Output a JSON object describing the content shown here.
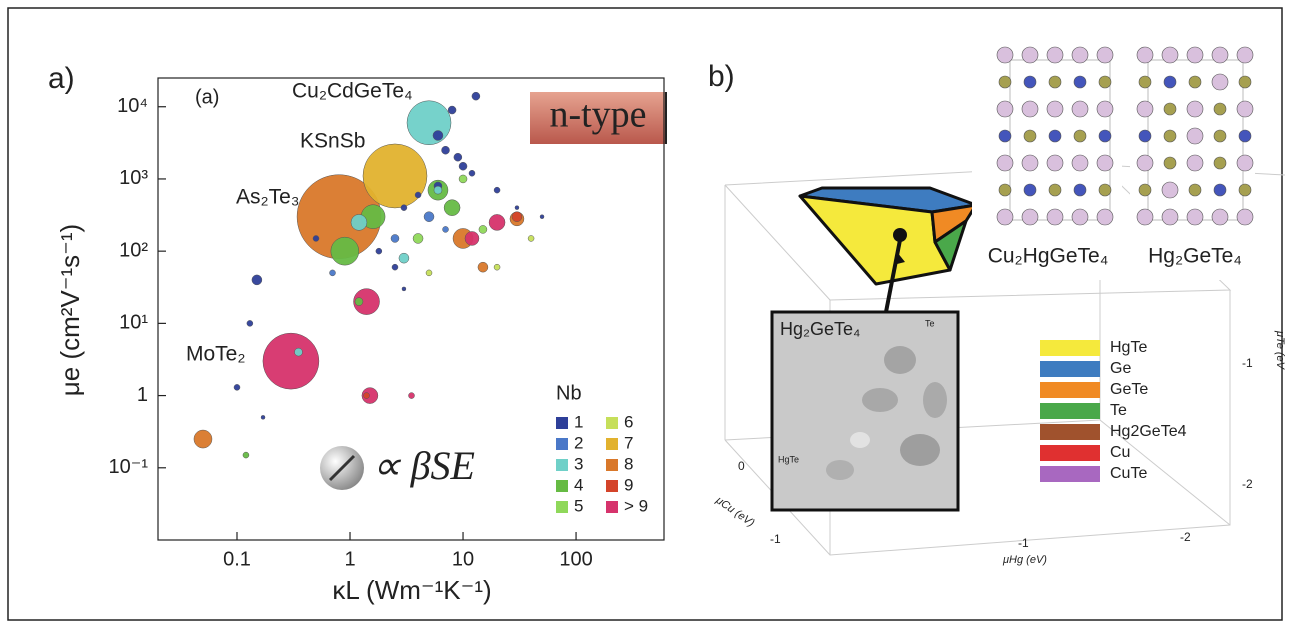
{
  "chart_data": {
    "type": "scatter",
    "panel_label": "a)",
    "x_label": "κL (Wm⁻¹K⁻¹)",
    "y_label": "μe (cm²V⁻¹s⁻¹)",
    "annotations": [
      "(a)",
      "Cu₂CdGeTe₄",
      "KSnSb",
      "As₂Te₃",
      "MoTe₂",
      "n-type",
      "∝ βSE"
    ],
    "xscale": "log",
    "yscale": "log",
    "xlim": [
      0.02,
      600
    ],
    "ylim": [
      0.01,
      25000
    ],
    "xticks": [
      0.1,
      1,
      10,
      100
    ],
    "yticks": [
      {
        "value": 0.1,
        "label": "10⁻¹"
      },
      1,
      {
        "value": 10,
        "label": "10¹"
      },
      {
        "value": 100,
        "label": "10²"
      },
      {
        "value": 1000,
        "label": "10³"
      },
      {
        "value": 10000,
        "label": "10⁴"
      }
    ],
    "legend_title": "Nb",
    "series": [
      {
        "name": "1",
        "color": "#2e3f99",
        "x": [
          13,
          8,
          6,
          7,
          9,
          10,
          12,
          6,
          4,
          3,
          0.15,
          0.13,
          0.1,
          0.5,
          20,
          30,
          50,
          3,
          1.8,
          2.5,
          0.17
        ],
        "values": [
          14000,
          9000,
          4000,
          2500,
          2000,
          1500,
          1200,
          800,
          600,
          400,
          40,
          10,
          1.3,
          150,
          700,
          400,
          300,
          30,
          100,
          60,
          0.5
        ],
        "sizes": [
          4,
          4,
          5,
          4,
          4,
          4,
          3,
          4,
          3,
          3,
          5,
          3,
          3,
          3,
          3,
          2,
          2,
          2,
          3,
          3,
          2
        ]
      },
      {
        "name": "2",
        "color": "#4a78c8",
        "x": [
          5,
          2.5,
          7,
          0.7
        ],
        "values": [
          300,
          150,
          200,
          50
        ],
        "sizes": [
          5,
          4,
          3,
          3
        ]
      },
      {
        "name": "3",
        "color": "#6fd0c8",
        "x": [
          5,
          3,
          6,
          0.35,
          1.2
        ],
        "values": [
          6000,
          80,
          700,
          4,
          250
        ],
        "sizes": [
          22,
          5,
          4,
          4,
          8
        ]
      },
      {
        "name": "4",
        "color": "#66bb44",
        "x": [
          0.9,
          1.6,
          6,
          8,
          1.2,
          0.12
        ],
        "values": [
          100,
          300,
          700,
          400,
          20,
          0.15
        ],
        "sizes": [
          14,
          12,
          10,
          8,
          4,
          3
        ]
      },
      {
        "name": "5",
        "color": "#8fd85a",
        "x": [
          4,
          10,
          15
        ],
        "values": [
          150,
          1000,
          200
        ],
        "sizes": [
          5,
          4,
          4
        ]
      },
      {
        "name": "6",
        "color": "#c6df5a",
        "x": [
          5,
          20,
          40
        ],
        "values": [
          50,
          60,
          150
        ],
        "sizes": [
          3,
          3,
          3
        ]
      },
      {
        "name": "7",
        "color": "#e2b22e",
        "x": [
          2.5
        ],
        "values": [
          1100
        ],
        "sizes": [
          32
        ]
      },
      {
        "name": "8",
        "color": "#d9782a",
        "x": [
          0.8,
          10,
          0.05,
          15,
          30
        ],
        "values": [
          300,
          150,
          0.25,
          60,
          280
        ],
        "sizes": [
          42,
          10,
          9,
          5,
          7
        ]
      },
      {
        "name": "9",
        "color": "#d4442a",
        "x": [
          30,
          1.4
        ],
        "values": [
          300,
          1
        ],
        "sizes": [
          5,
          3
        ]
      },
      {
        "name": "> 9",
        "color": "#d6336c",
        "x": [
          0.3,
          1.4,
          20,
          12,
          1.5,
          3.5
        ],
        "values": [
          3,
          20,
          250,
          150,
          1,
          1
        ],
        "sizes": [
          28,
          13,
          8,
          7,
          8,
          3
        ]
      }
    ]
  },
  "panel_b": {
    "panel_label": "b)",
    "structures": [
      "Cu₂HgGeTe₄",
      "Hg₂GeTe₄"
    ],
    "inset": {
      "title": "Hg₂GeTe₄",
      "labels": [
        "Te",
        "HgTe"
      ]
    },
    "legend": [
      {
        "label": "HgTe",
        "color": "#f5e93c"
      },
      {
        "label": "Ge",
        "color": "#3e7cc0"
      },
      {
        "label": "GeTe",
        "color": "#f08a24"
      },
      {
        "label": "Te",
        "color": "#4aa84a"
      },
      {
        "label": "Hg2GeTe4",
        "color": "#a0522d"
      },
      {
        "label": "Cu",
        "color": "#e03030"
      },
      {
        "label": "CuTe",
        "color": "#a868c0"
      }
    ],
    "axis_labels": [
      "μCu (eV)",
      "μHg (eV)",
      "μTe (eV"
    ],
    "tick_labels": [
      "0",
      "-1",
      "-1",
      "-2",
      "-1",
      "-2"
    ]
  }
}
